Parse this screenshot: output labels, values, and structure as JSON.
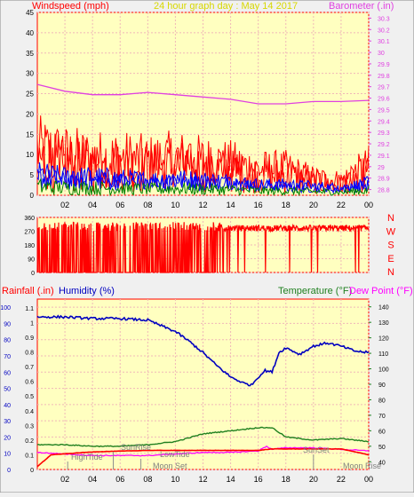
{
  "header": {
    "left_label": "Windspeed (mph)",
    "title": "24 hour graph day : May 14 2017",
    "right_label": "Barometer (.in)"
  },
  "bottom_header": {
    "rain_label": "Rainfall (.in)",
    "humidity_label": "Humidity (%)",
    "temperature_label": "Temperature (°F)",
    "dewpoint_label": "Dew Point (°F)"
  },
  "colors": {
    "plot_bg": "#ffffc0",
    "grid": "#f0b8b8",
    "axis": "#ff0000",
    "wind_gust": "#ff0000",
    "wind_avg": "#0000ff",
    "wind_low": "#008000",
    "barometer": "#e040e0",
    "title": "#d8d800",
    "humidity": "#0000c0",
    "temperature": "#208020",
    "dewpoint": "#ff00ff",
    "rain": "#ff0000"
  },
  "chart_data": [
    {
      "type": "line",
      "name": "wind-barometer",
      "xlabel": "",
      "ylabel": "Windspeed (mph)",
      "y2label": "Barometer (.in)",
      "x_ticks": [
        "02",
        "04",
        "06",
        "08",
        "10",
        "12",
        "14",
        "16",
        "18",
        "20",
        "22",
        "00"
      ],
      "y_ticks": [
        "0",
        "5",
        "10",
        "15",
        "20",
        "25",
        "30",
        "35",
        "40",
        "45"
      ],
      "ylim": [
        0,
        45
      ],
      "y2_ticks": [
        "28.8",
        "28.9",
        "29",
        "29.1",
        "29.2",
        "29.3",
        "29.4",
        "29.5",
        "29.6",
        "29.7",
        "29.8",
        "29.9",
        "30",
        "30.1",
        "30.2",
        "30.3"
      ],
      "y2lim": [
        28.75,
        30.35
      ],
      "barometer": {
        "x": [
          0,
          2,
          4,
          6,
          8,
          10,
          12,
          14,
          16,
          18,
          20,
          22,
          24
        ],
        "y": [
          29.72,
          29.66,
          29.63,
          29.63,
          29.65,
          29.63,
          29.61,
          29.59,
          29.55,
          29.55,
          29.57,
          29.57,
          29.58
        ]
      },
      "gust_envelope": {
        "x": [
          0,
          2,
          4,
          6,
          8,
          10,
          12,
          14,
          16,
          18,
          20,
          22,
          24
        ],
        "y": [
          16,
          14,
          13,
          13,
          12,
          13,
          12,
          11,
          9,
          9,
          6,
          5,
          10
        ]
      },
      "avg_envelope": {
        "x": [
          0,
          2,
          4,
          6,
          8,
          10,
          12,
          14,
          16,
          18,
          20,
          22,
          24
        ],
        "y": [
          7,
          6,
          6,
          5.5,
          5,
          5.5,
          5,
          4.5,
          3.5,
          3.5,
          3,
          2.5,
          4
        ]
      }
    },
    {
      "type": "scatter",
      "name": "wind-direction",
      "y_ticks": [
        "0",
        "90",
        "180",
        "270",
        "360"
      ],
      "ylim": [
        0,
        360
      ],
      "compass": [
        "N",
        "W",
        "S",
        "E",
        "N"
      ],
      "typical_deg": 290
    },
    {
      "type": "line",
      "name": "humidity-temp",
      "x_ticks": [
        "02",
        "04",
        "06",
        "08",
        "10",
        "12",
        "14",
        "16",
        "18",
        "20",
        "22",
        "00"
      ],
      "rain_ticks": [
        "0",
        "0.1",
        "0.2",
        "0.3",
        "0.4",
        "0.5",
        "0.6",
        "0.7",
        "0.8",
        "0.9",
        "1",
        "1.1"
      ],
      "hum_ticks": [
        "0",
        "10",
        "20",
        "30",
        "40",
        "50",
        "60",
        "70",
        "80",
        "90",
        "100"
      ],
      "temp_ticks": [
        "40",
        "50",
        "60",
        "70",
        "80",
        "90",
        "100",
        "110",
        "120",
        "130",
        "140"
      ],
      "rain_lim": [
        0,
        1.16
      ],
      "hum_lim": [
        0,
        105
      ],
      "temp_lim": [
        35,
        145
      ],
      "humidity": {
        "x": [
          0,
          2,
          4,
          6,
          8,
          10,
          11,
          12,
          13,
          14,
          15,
          15.5,
          16,
          16.5,
          17,
          17.5,
          18,
          19,
          20,
          21,
          22,
          23,
          24
        ],
        "y": [
          94,
          94,
          93,
          93,
          92,
          85,
          79,
          72,
          64,
          57,
          53,
          52,
          57,
          61,
          60,
          72,
          75,
          71,
          76,
          78,
          76,
          73,
          72
        ]
      },
      "temperature": {
        "x": [
          0,
          2,
          4,
          6,
          8,
          10,
          12,
          14,
          16,
          17,
          18,
          20,
          22,
          24
        ],
        "y": [
          51,
          51,
          50,
          50,
          51,
          53,
          58,
          60,
          62,
          62,
          56,
          54,
          55,
          53
        ]
      },
      "dewpoint": {
        "x": [
          0,
          2,
          4,
          6,
          8,
          10,
          12,
          14,
          16,
          16.6,
          17,
          18,
          20,
          22,
          24
        ],
        "y": [
          46,
          45,
          44,
          44,
          44,
          45,
          46,
          46,
          47,
          50,
          48,
          49,
          49,
          48,
          47
        ]
      },
      "rain": {
        "x": [
          0,
          1,
          4,
          8,
          12,
          16,
          17,
          18,
          22,
          24
        ],
        "y": [
          0.02,
          0.1,
          0.12,
          0.13,
          0.13,
          0.13,
          0.14,
          0.14,
          0.14,
          0.1
        ]
      },
      "annotations": {
        "sunrise": "SunRise",
        "lowtide": "LowTide",
        "hightide": "HighTide",
        "moonset": "Moon Set",
        "sunset": "SunSet",
        "moonrise": "Moon Rise"
      }
    }
  ]
}
